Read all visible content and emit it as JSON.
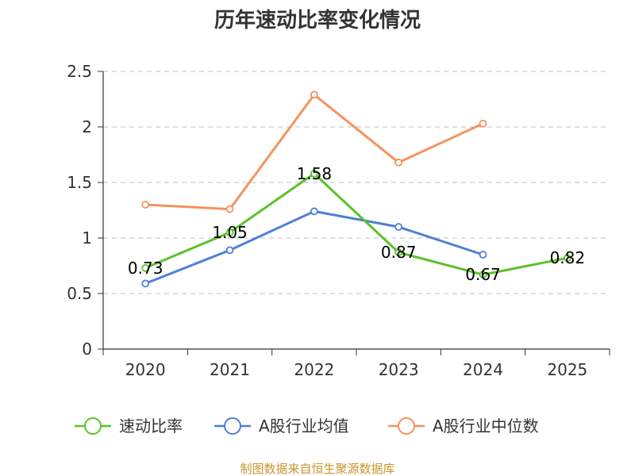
{
  "chart_data": {
    "type": "line",
    "title": "历年速动比率变化情况",
    "categories": [
      "2020",
      "2021",
      "2022",
      "2023",
      "2024",
      "2025"
    ],
    "ylim": [
      0,
      2.5
    ],
    "yticks": [
      0,
      0.5,
      1,
      1.5,
      2,
      2.5
    ],
    "ytick_labels": [
      "0",
      "0.5",
      "1",
      "1.5",
      "2",
      "2.5"
    ],
    "grid": true,
    "legend_position": "bottom",
    "series": [
      {
        "name": "速动比率",
        "color": "#5bc228",
        "values": [
          0.73,
          1.05,
          1.58,
          0.87,
          0.67,
          0.82
        ],
        "labels": [
          "0.73",
          "1.05",
          "1.58",
          "0.87",
          "0.67",
          "0.82"
        ]
      },
      {
        "name": "A股行业均值",
        "color": "#4f7fd6",
        "values": [
          0.59,
          0.89,
          1.24,
          1.1,
          0.85,
          null
        ]
      },
      {
        "name": "A股行业中位数",
        "color": "#f5925d",
        "values": [
          1.3,
          1.26,
          2.29,
          1.68,
          2.03,
          null
        ]
      }
    ]
  },
  "footer": {
    "source": "制图数据来自恒生聚源数据库"
  }
}
